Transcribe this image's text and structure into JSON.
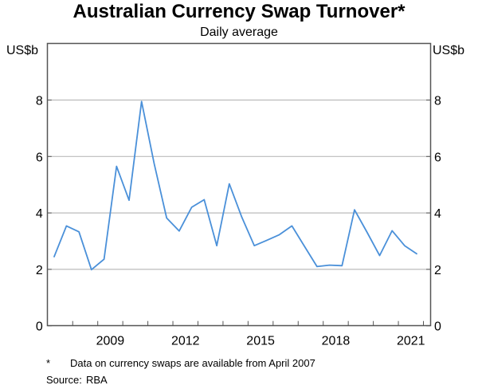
{
  "chart_data": {
    "type": "line",
    "title": "Australian Currency Swap Turnover*",
    "subtitle": "Daily average",
    "ylabel_left": "US$b",
    "ylabel_right": "US$b",
    "ylim": [
      0,
      10
    ],
    "yticks": [
      0,
      2,
      4,
      6,
      8
    ],
    "xlim": [
      2007,
      2022.27
    ],
    "xtick_labels": [
      "2009",
      "2012",
      "2015",
      "2018",
      "2021"
    ],
    "grid": true,
    "line_color": "#4a90d9",
    "series": [
      {
        "x": [
          2007.25,
          2007.75,
          2008.25,
          2008.75,
          2009.25,
          2009.75,
          2010.25,
          2010.75,
          2011.25,
          2011.75,
          2012.25,
          2012.75,
          2013.25,
          2013.75,
          2014.25,
          2014.75,
          2015.25,
          2015.75,
          2016.25,
          2016.75,
          2017.25,
          2017.75,
          2018.25,
          2018.75,
          2019.25,
          2019.75,
          2020.25,
          2020.75,
          2021.25,
          2021.75
        ],
        "values": [
          2.43,
          3.54,
          3.33,
          1.99,
          2.36,
          5.65,
          4.45,
          7.95,
          5.75,
          3.82,
          3.36,
          4.2,
          4.47,
          2.84,
          5.03,
          3.85,
          2.84,
          3.03,
          3.23,
          3.54,
          2.82,
          2.1,
          2.15,
          2.13,
          4.11,
          3.31,
          2.49,
          3.37,
          2.84,
          2.54
        ]
      }
    ]
  },
  "notes": {
    "footnote_marker": "*",
    "footnote_text": "Data on currency swaps are available from April 2007",
    "source_label": "Source:",
    "source_text": "RBA"
  }
}
